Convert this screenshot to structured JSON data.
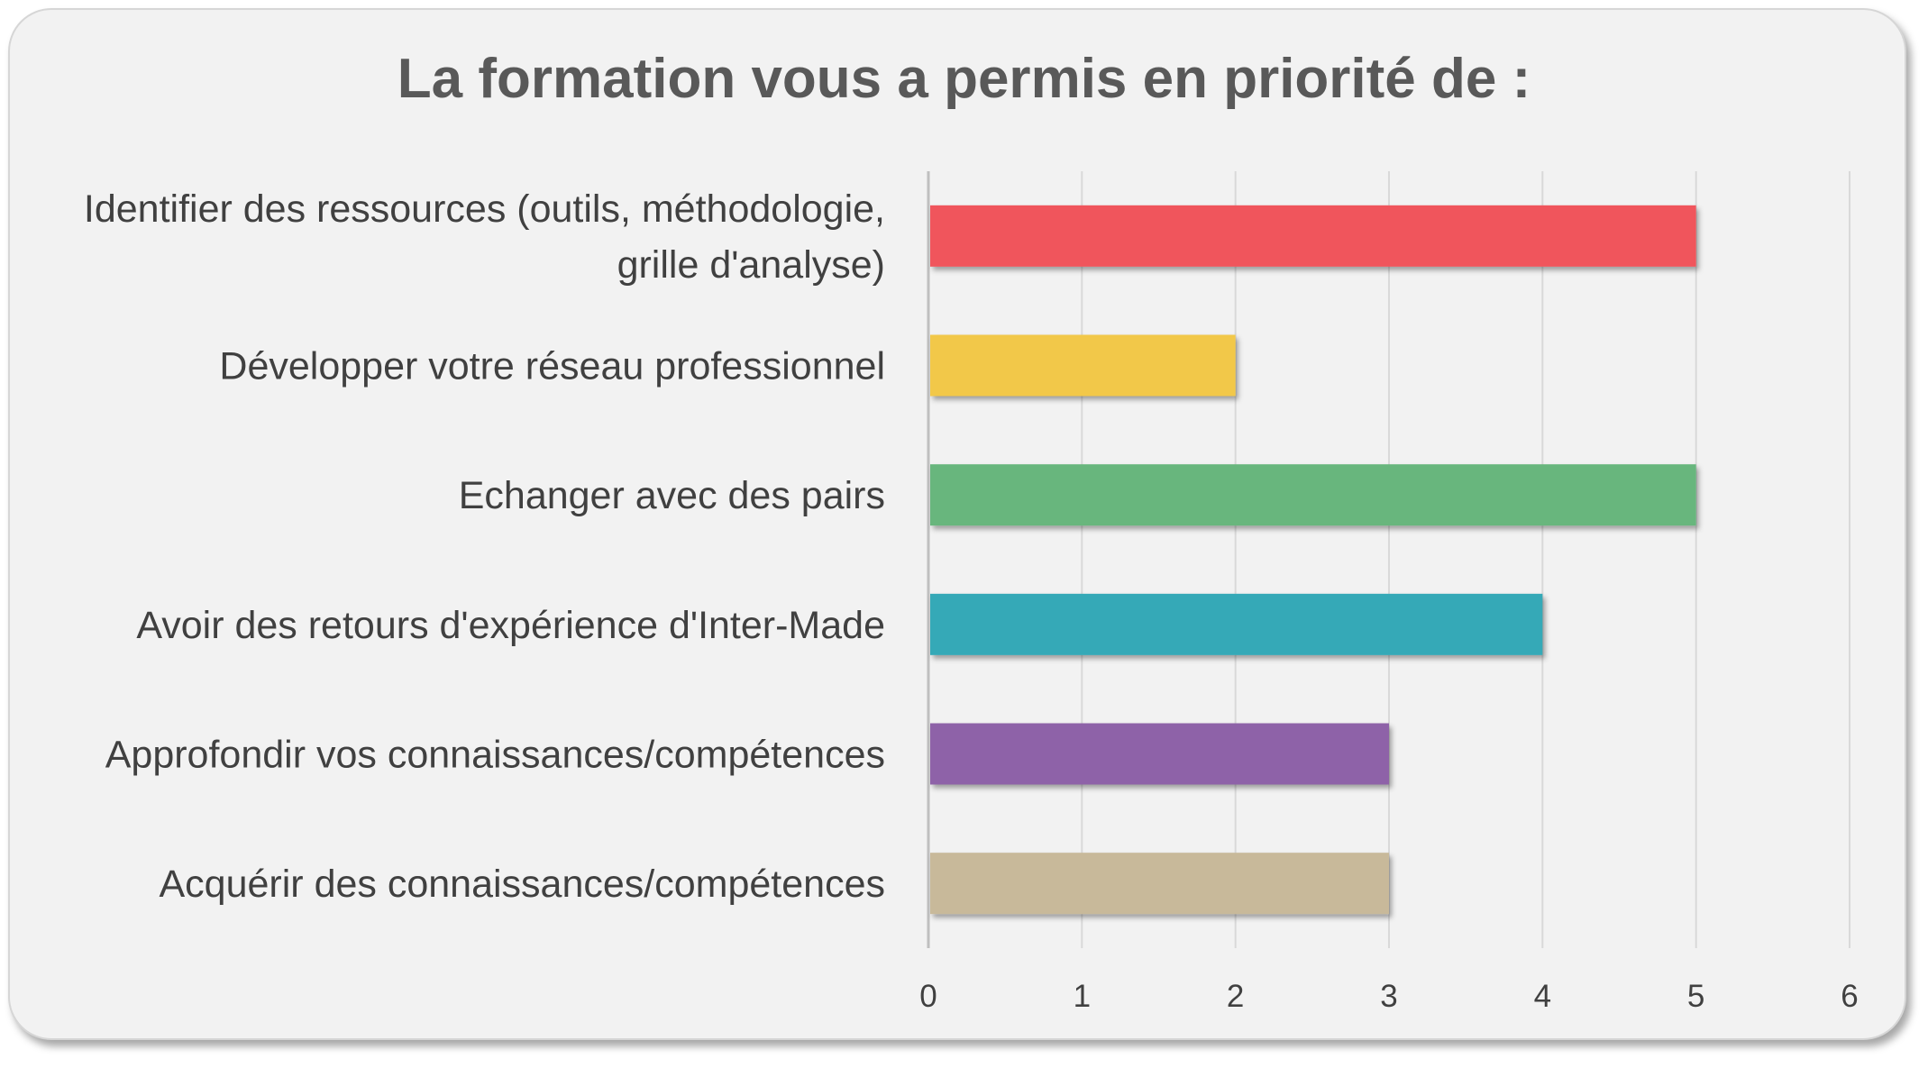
{
  "chart_data": {
    "type": "bar",
    "orientation": "horizontal",
    "title": "La formation vous a permis en priorité de :",
    "categories": [
      "Identifier des ressources (outils, méthodologie, grille d'analyse)",
      "Développer votre réseau professionnel",
      "Echanger avec des pairs",
      "Avoir des retours d'expérience d'Inter-Made",
      "Approfondir vos connaissances/compétences",
      "Acquérir des connaissances/compétences"
    ],
    "category_lines": [
      [
        "Identifier des ressources (outils, méthodologie,",
        "grille d'analyse)"
      ],
      [
        "Développer votre réseau professionnel"
      ],
      [
        "Echanger avec des pairs"
      ],
      [
        "Avoir des retours d'expérience d'Inter-Made"
      ],
      [
        "Approfondir vos connaissances/compétences"
      ],
      [
        "Acquérir des connaissances/compétences"
      ]
    ],
    "values": [
      5,
      2,
      5,
      4,
      3,
      3
    ],
    "colors": [
      "#f0545c",
      "#f2c84a",
      "#67b67d",
      "#36a9b7",
      "#8e62a8",
      "#c8b99a"
    ],
    "xlim": [
      0,
      6
    ],
    "xticks": [
      "0",
      "1",
      "2",
      "3",
      "4",
      "5",
      "6"
    ],
    "xlabel": "",
    "ylabel": "",
    "grid": "vertical",
    "legend": "none"
  }
}
